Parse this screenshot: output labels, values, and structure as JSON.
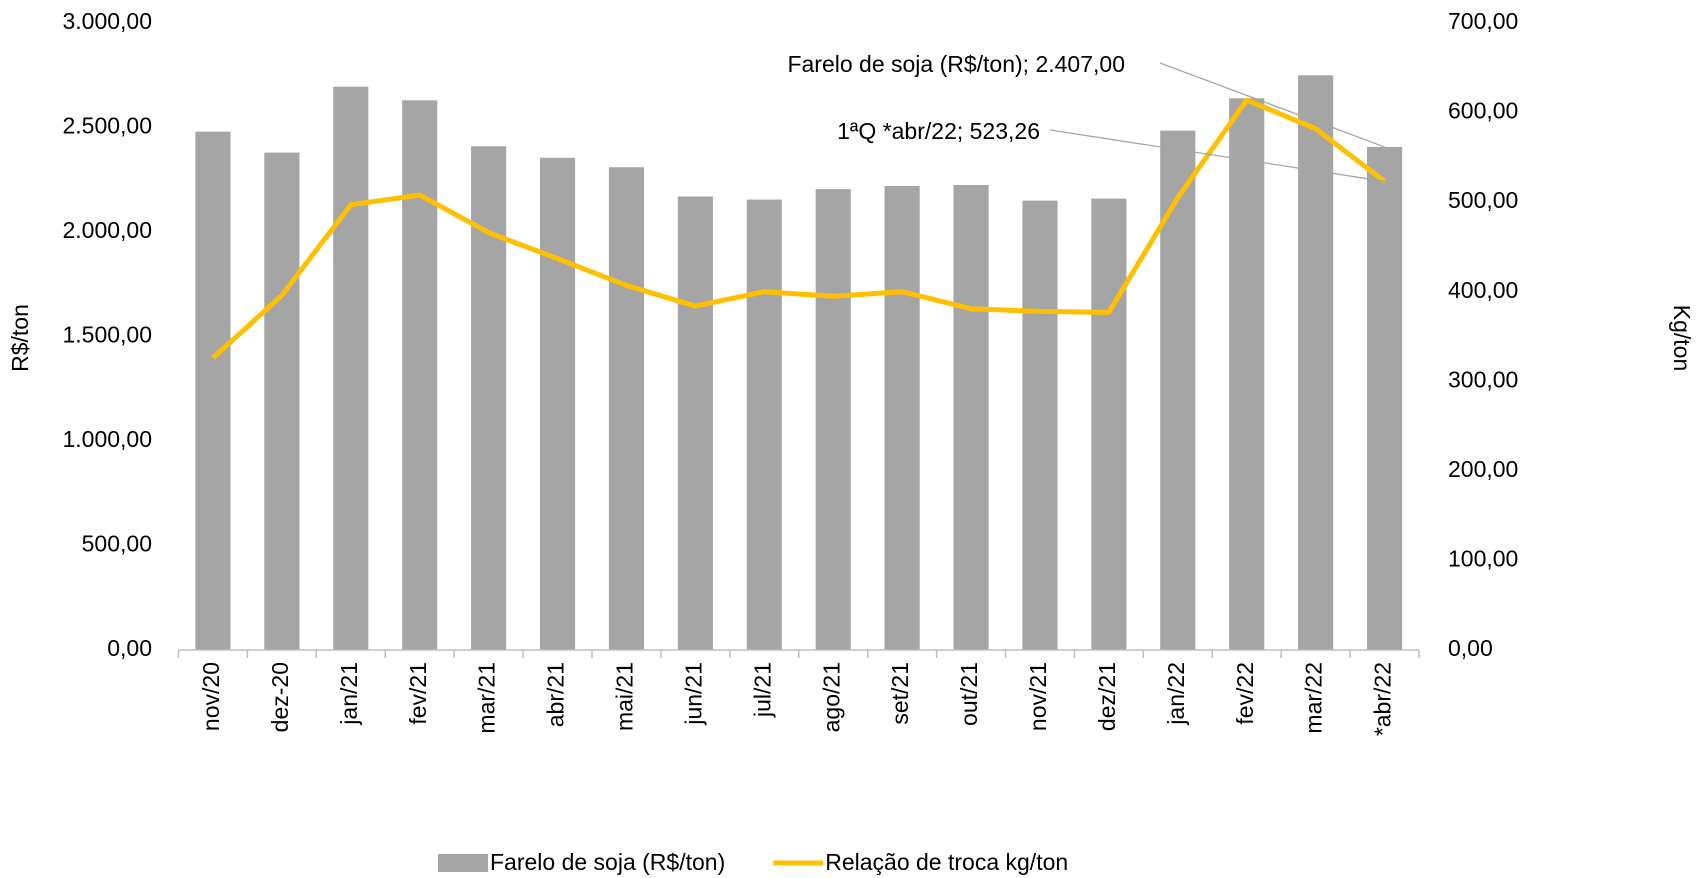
{
  "chart_data": {
    "type": "bar-line",
    "categories": [
      "nov/20",
      "dez-20",
      "jan/21",
      "fev/21",
      "mar/21",
      "abr/21",
      "mai/21",
      "jun/21",
      "jul/21",
      "ago/21",
      "set/21",
      "out/21",
      "nov/21",
      "dez/21",
      "jan/22",
      "fev/22",
      "mar/22",
      "*abr/22"
    ],
    "series": [
      {
        "name": "Farelo de soja (R$/ton)",
        "type": "bar",
        "color": "#a5a5a5",
        "values": [
          2480,
          2380,
          2695,
          2630,
          2410,
          2355,
          2310,
          2170,
          2155,
          2205,
          2220,
          2225,
          2150,
          2160,
          2485,
          2640,
          2750,
          2407
        ],
        "value_labels": [
          null,
          null,
          null,
          null,
          null,
          null,
          null,
          null,
          null,
          null,
          null,
          null,
          null,
          null,
          null,
          null,
          null,
          "Farelo de soja (R$/ton); 2.407,00"
        ]
      },
      {
        "name": "Relação de troca kg/ton",
        "type": "line",
        "axis": "y2",
        "color": "#ffc000",
        "values": [
          326,
          396,
          497,
          508,
          466,
          437,
          407,
          384,
          400,
          395,
          400,
          381,
          378,
          377,
          505,
          614,
          582,
          523.26
        ],
        "value_labels": [
          null,
          null,
          null,
          null,
          null,
          null,
          null,
          null,
          null,
          null,
          null,
          null,
          null,
          null,
          null,
          null,
          null,
          "1ªQ *abr/22; 523,26"
        ]
      }
    ],
    "y_label": "R$/ton",
    "y2_label": "Kg/ton",
    "ylim": [
      0,
      3000
    ],
    "yticks": [
      {
        "value": 0,
        "label": "0,00"
      },
      {
        "value": 500,
        "label": "500,00"
      },
      {
        "value": 1000,
        "label": "1.000,00"
      },
      {
        "value": 1500,
        "label": "1.500,00"
      },
      {
        "value": 2000,
        "label": "2.000,00"
      },
      {
        "value": 2500,
        "label": "2.500,00"
      },
      {
        "value": 3000,
        "label": "3.000,00"
      }
    ],
    "y2lim": [
      0,
      700
    ],
    "y2ticks": [
      {
        "value": 0,
        "label": "0,00"
      },
      {
        "value": 100,
        "label": "100,00"
      },
      {
        "value": 200,
        "label": "200,00"
      },
      {
        "value": 300,
        "label": "300,00"
      },
      {
        "value": 400,
        "label": "400,00"
      },
      {
        "value": 500,
        "label": "500,00"
      },
      {
        "value": 600,
        "label": "600,00"
      },
      {
        "value": 700,
        "label": "700,00"
      }
    ],
    "legend": "bottom"
  }
}
